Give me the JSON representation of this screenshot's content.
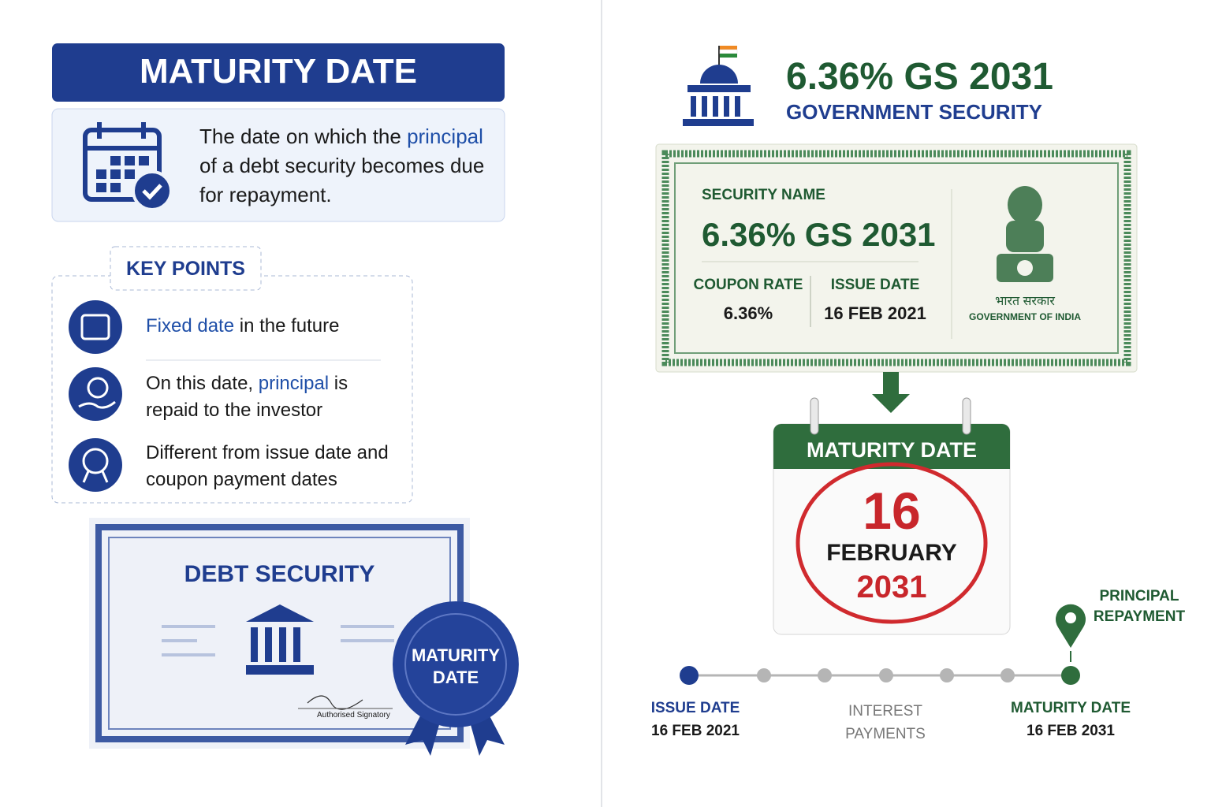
{
  "left": {
    "title": "MATURITY DATE",
    "definition": [
      "The date on which the ",
      "principal",
      " of a debt security becomes due for repayment."
    ],
    "key_points": {
      "heading": "KEY POINTS",
      "items": [
        [
          "Fixed date",
          " in the future"
        ],
        [
          "On this date, ",
          "principal",
          " is repaid to the investor"
        ],
        [
          "Different from issue date and coupon payment dates"
        ]
      ]
    },
    "certificate": {
      "title": "DEBT SECURITY",
      "signature": "Authorised Signatory",
      "seal": [
        "MATURITY",
        "DATE"
      ]
    }
  },
  "right": {
    "title": "6.36% GS 2031",
    "subtitle": "GOVERNMENT SECURITY",
    "bond": {
      "name_label": "SECURITY NAME",
      "name": "6.36% GS 2031",
      "coupon_label": "COUPON RATE",
      "coupon": "6.36%",
      "issue_label": "ISSUE DATE",
      "issue": "16 FEB 2021",
      "emblem_hindi": "भारत सरकार",
      "emblem_english": "GOVERNMENT OF INDIA"
    },
    "calendar": {
      "header": "MATURITY DATE",
      "day": "16",
      "month": "FEBRUARY",
      "year": "2031"
    },
    "timeline": {
      "marker": [
        "PRINCIPAL",
        "REPAYMENT"
      ],
      "points": [
        {
          "label": "ISSUE DATE",
          "date": "16 FEB 2021"
        },
        {
          "label": [
            "INTEREST",
            "PAYMENTS"
          ]
        },
        {
          "label": "MATURITY DATE",
          "date": "16 FEB 2031"
        }
      ]
    }
  }
}
